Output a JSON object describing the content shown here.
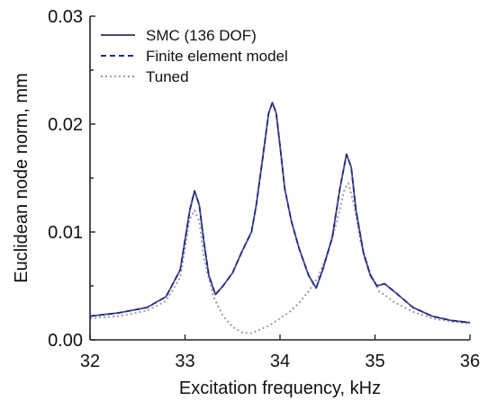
{
  "chart_data": {
    "type": "line",
    "xlabel": "Excitation frequency, kHz",
    "ylabel": "Euclidean node norm, mm",
    "xlim": [
      32,
      36
    ],
    "ylim": [
      0,
      0.03
    ],
    "x_ticks": [
      "32",
      "33",
      "34",
      "35",
      "36"
    ],
    "y_ticks": [
      "0.00",
      "0.01",
      "0.02",
      "0.03"
    ],
    "legend_position": "top-left",
    "grid": false,
    "series": [
      {
        "name": "SMC (136 DOF)",
        "style": "solid",
        "color": "#4a4a7a",
        "points": [
          [
            32.0,
            0.0022
          ],
          [
            32.3,
            0.0025
          ],
          [
            32.6,
            0.003
          ],
          [
            32.8,
            0.004
          ],
          [
            32.95,
            0.0065
          ],
          [
            33.05,
            0.012
          ],
          [
            33.1,
            0.0138
          ],
          [
            33.15,
            0.0125
          ],
          [
            33.2,
            0.009
          ],
          [
            33.25,
            0.006
          ],
          [
            33.32,
            0.0042
          ],
          [
            33.4,
            0.005
          ],
          [
            33.5,
            0.0062
          ],
          [
            33.6,
            0.0082
          ],
          [
            33.7,
            0.01
          ],
          [
            33.75,
            0.0125
          ],
          [
            33.82,
            0.017
          ],
          [
            33.88,
            0.021
          ],
          [
            33.92,
            0.022
          ],
          [
            33.96,
            0.021
          ],
          [
            34.0,
            0.018
          ],
          [
            34.05,
            0.014
          ],
          [
            34.12,
            0.011
          ],
          [
            34.2,
            0.0085
          ],
          [
            34.3,
            0.006
          ],
          [
            34.38,
            0.0048
          ],
          [
            34.45,
            0.0065
          ],
          [
            34.55,
            0.0095
          ],
          [
            34.63,
            0.014
          ],
          [
            34.7,
            0.0172
          ],
          [
            34.75,
            0.016
          ],
          [
            34.8,
            0.012
          ],
          [
            34.88,
            0.008
          ],
          [
            34.95,
            0.006
          ],
          [
            35.02,
            0.005
          ],
          [
            35.1,
            0.0052
          ],
          [
            35.2,
            0.0045
          ],
          [
            35.4,
            0.003
          ],
          [
            35.6,
            0.0022
          ],
          [
            35.8,
            0.0018
          ],
          [
            36.0,
            0.0016
          ]
        ]
      },
      {
        "name": "Finite element model",
        "style": "dashed",
        "color": "#1f2a8a",
        "points": [
          [
            32.0,
            0.0022
          ],
          [
            32.3,
            0.0025
          ],
          [
            32.6,
            0.003
          ],
          [
            32.8,
            0.004
          ],
          [
            32.95,
            0.0065
          ],
          [
            33.05,
            0.012
          ],
          [
            33.1,
            0.0138
          ],
          [
            33.15,
            0.0125
          ],
          [
            33.2,
            0.009
          ],
          [
            33.25,
            0.006
          ],
          [
            33.32,
            0.0042
          ],
          [
            33.4,
            0.005
          ],
          [
            33.5,
            0.0062
          ],
          [
            33.6,
            0.0082
          ],
          [
            33.7,
            0.01
          ],
          [
            33.75,
            0.0125
          ],
          [
            33.82,
            0.017
          ],
          [
            33.88,
            0.021
          ],
          [
            33.92,
            0.022
          ],
          [
            33.96,
            0.021
          ],
          [
            34.0,
            0.018
          ],
          [
            34.05,
            0.014
          ],
          [
            34.12,
            0.011
          ],
          [
            34.2,
            0.0085
          ],
          [
            34.3,
            0.006
          ],
          [
            34.38,
            0.0048
          ],
          [
            34.45,
            0.0065
          ],
          [
            34.55,
            0.0095
          ],
          [
            34.63,
            0.014
          ],
          [
            34.7,
            0.0172
          ],
          [
            34.75,
            0.016
          ],
          [
            34.8,
            0.012
          ],
          [
            34.88,
            0.008
          ],
          [
            34.95,
            0.006
          ],
          [
            35.02,
            0.005
          ],
          [
            35.1,
            0.0052
          ],
          [
            35.2,
            0.0045
          ],
          [
            35.4,
            0.003
          ],
          [
            35.6,
            0.0022
          ],
          [
            35.8,
            0.0018
          ],
          [
            36.0,
            0.0016
          ]
        ]
      },
      {
        "name": "Tuned",
        "style": "dotted",
        "color": "#9a9ab0",
        "points": [
          [
            32.0,
            0.002
          ],
          [
            32.3,
            0.0022
          ],
          [
            32.6,
            0.0027
          ],
          [
            32.8,
            0.0036
          ],
          [
            32.95,
            0.0058
          ],
          [
            33.05,
            0.0112
          ],
          [
            33.1,
            0.012
          ],
          [
            33.15,
            0.011
          ],
          [
            33.2,
            0.0075
          ],
          [
            33.3,
            0.004
          ],
          [
            33.4,
            0.0022
          ],
          [
            33.5,
            0.0012
          ],
          [
            33.6,
            0.0007
          ],
          [
            33.7,
            0.0006
          ],
          [
            33.8,
            0.001
          ],
          [
            33.9,
            0.0014
          ],
          [
            34.0,
            0.002
          ],
          [
            34.1,
            0.0026
          ],
          [
            34.2,
            0.0034
          ],
          [
            34.3,
            0.0045
          ],
          [
            34.4,
            0.0058
          ],
          [
            34.5,
            0.008
          ],
          [
            34.6,
            0.011
          ],
          [
            34.68,
            0.014
          ],
          [
            34.72,
            0.0145
          ],
          [
            34.78,
            0.0125
          ],
          [
            34.85,
            0.009
          ],
          [
            34.95,
            0.0062
          ],
          [
            35.05,
            0.0044
          ],
          [
            35.1,
            0.0042
          ],
          [
            35.2,
            0.0035
          ],
          [
            35.4,
            0.0026
          ],
          [
            35.6,
            0.002
          ],
          [
            35.8,
            0.0017
          ],
          [
            36.0,
            0.0015
          ]
        ]
      }
    ]
  }
}
